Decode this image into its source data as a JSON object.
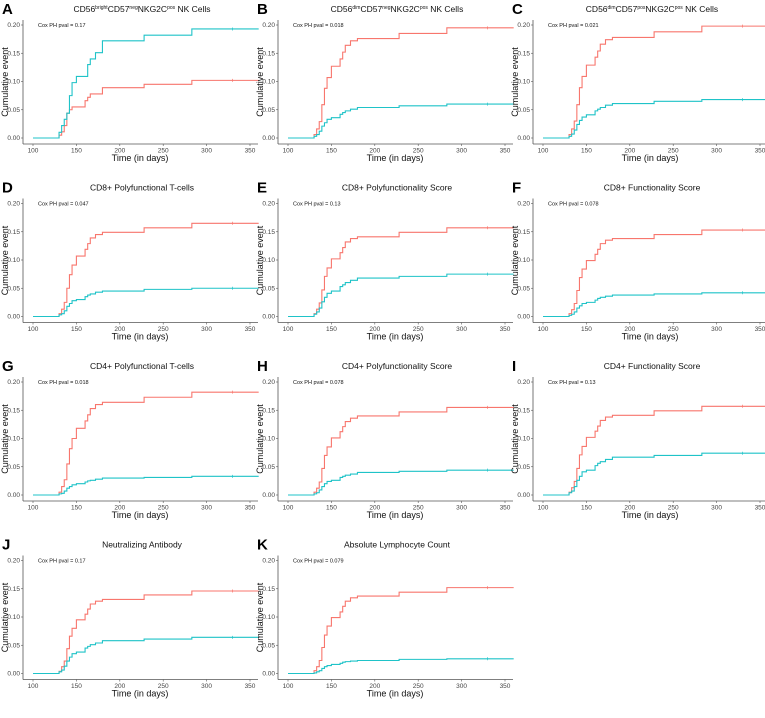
{
  "colors": {
    "red": "#F8766D",
    "cyan": "#1FC3C8",
    "axis": "#555555"
  },
  "chart_data": {
    "type": "line",
    "subtype": "step (cumulative event / Kaplan-Meier)",
    "xlabel": "Time (in days)",
    "ylabel": "Cumulative event",
    "xlim": [
      95,
      360
    ],
    "ylim": [
      0,
      0.2
    ],
    "xticks": [
      100,
      150,
      200,
      250,
      300,
      350
    ],
    "yticks": [
      "0.00",
      "0.05",
      "0.10",
      "0.15",
      "0.20"
    ],
    "step_times": [
      100,
      130,
      133,
      136,
      139,
      142,
      145,
      150,
      160,
      163,
      166,
      172,
      180,
      228,
      283
    ],
    "censor_time": 330,
    "end_time": 360,
    "panels": [
      {
        "letter": "A",
        "title_parts": [
          "CD56",
          "bright",
          "CD57",
          "neg",
          "NKG2C",
          "pos",
          " NK Cells"
        ],
        "pval": "Cox PH pval = 0.17",
        "red": [
          0,
          0.005,
          0.011,
          0.022,
          0.044,
          0.05,
          0.055,
          0.055,
          0.066,
          0.072,
          0.078,
          0.078,
          0.089,
          0.095,
          0.102
        ],
        "cyan": [
          0,
          0.01,
          0.022,
          0.033,
          0.044,
          0.075,
          0.098,
          0.109,
          0.109,
          0.13,
          0.14,
          0.151,
          0.172,
          0.182,
          0.193
        ]
      },
      {
        "letter": "B",
        "title_parts": [
          "CD56",
          "dim",
          "CD57",
          "neg",
          "NKG2C",
          "pos",
          " NK Cells"
        ],
        "pval": "Cox PH pval = 0.018",
        "red": [
          0,
          0.006,
          0.016,
          0.029,
          0.059,
          0.088,
          0.107,
          0.127,
          0.14,
          0.152,
          0.164,
          0.172,
          0.176,
          0.185,
          0.195
        ],
        "cyan": [
          0,
          0.003,
          0.006,
          0.012,
          0.021,
          0.027,
          0.033,
          0.036,
          0.042,
          0.045,
          0.048,
          0.051,
          0.054,
          0.057,
          0.06
        ]
      },
      {
        "letter": "C",
        "title_parts": [
          "CD56",
          "dim",
          "CD57",
          "pos",
          "NKG2C",
          "pos",
          " NK Cells"
        ],
        "pval": "Cox PH pval = 0.021",
        "red": [
          0,
          0.006,
          0.016,
          0.03,
          0.059,
          0.089,
          0.109,
          0.129,
          0.143,
          0.154,
          0.166,
          0.174,
          0.178,
          0.188,
          0.198
        ],
        "cyan": [
          0,
          0.003,
          0.007,
          0.014,
          0.024,
          0.031,
          0.037,
          0.041,
          0.048,
          0.051,
          0.054,
          0.058,
          0.061,
          0.065,
          0.068
        ]
      },
      {
        "letter": "D",
        "title_parts": [
          "CD8+ Polyfunctional T-cells"
        ],
        "pval": "Cox PH pval = 0.047",
        "red": [
          0,
          0.005,
          0.013,
          0.025,
          0.05,
          0.074,
          0.091,
          0.107,
          0.119,
          0.129,
          0.139,
          0.145,
          0.149,
          0.157,
          0.165
        ],
        "cyan": [
          0,
          0.003,
          0.005,
          0.01,
          0.018,
          0.023,
          0.028,
          0.03,
          0.035,
          0.038,
          0.04,
          0.043,
          0.045,
          0.048,
          0.05
        ]
      },
      {
        "letter": "E",
        "title_parts": [
          "CD8+ Polyfunctionality Score"
        ],
        "pval": "Cox PH pval = 0.13",
        "red": [
          0,
          0.005,
          0.013,
          0.024,
          0.047,
          0.071,
          0.086,
          0.102,
          0.113,
          0.122,
          0.132,
          0.138,
          0.141,
          0.149,
          0.157
        ],
        "cyan": [
          0,
          0.004,
          0.008,
          0.015,
          0.026,
          0.034,
          0.041,
          0.045,
          0.053,
          0.056,
          0.06,
          0.064,
          0.068,
          0.071,
          0.075
        ]
      },
      {
        "letter": "F",
        "title_parts": [
          "CD8+ Functionality Score"
        ],
        "pval": "Cox PH pval = 0.078",
        "red": [
          0,
          0.005,
          0.012,
          0.023,
          0.046,
          0.069,
          0.084,
          0.099,
          0.11,
          0.119,
          0.129,
          0.135,
          0.138,
          0.145,
          0.153
        ],
        "cyan": [
          0,
          0.002,
          0.004,
          0.008,
          0.015,
          0.019,
          0.023,
          0.025,
          0.029,
          0.032,
          0.034,
          0.036,
          0.038,
          0.04,
          0.042
        ]
      },
      {
        "letter": "G",
        "title_parts": [
          "CD4+ Polyfunctional T-cells"
        ],
        "pval": "Cox PH pval = 0.018",
        "red": [
          0,
          0.005,
          0.015,
          0.027,
          0.055,
          0.082,
          0.1,
          0.118,
          0.131,
          0.142,
          0.153,
          0.16,
          0.164,
          0.173,
          0.182
        ],
        "cyan": [
          0,
          0.002,
          0.003,
          0.007,
          0.012,
          0.015,
          0.018,
          0.02,
          0.023,
          0.025,
          0.026,
          0.028,
          0.03,
          0.031,
          0.033
        ]
      },
      {
        "letter": "H",
        "title_parts": [
          "CD4+ Polyfunctionality Score"
        ],
        "pval": "Cox PH pval = 0.078",
        "red": [
          0,
          0.005,
          0.012,
          0.023,
          0.047,
          0.07,
          0.085,
          0.101,
          0.112,
          0.121,
          0.13,
          0.136,
          0.14,
          0.147,
          0.155
        ],
        "cyan": [
          0,
          0.002,
          0.004,
          0.009,
          0.015,
          0.02,
          0.024,
          0.026,
          0.031,
          0.033,
          0.035,
          0.037,
          0.04,
          0.042,
          0.044
        ]
      },
      {
        "letter": "I",
        "title_parts": [
          "CD4+ Functionality Score"
        ],
        "pval": "Cox PH pval = 0.13",
        "red": [
          0,
          0.005,
          0.013,
          0.024,
          0.047,
          0.071,
          0.086,
          0.102,
          0.113,
          0.122,
          0.132,
          0.138,
          0.141,
          0.149,
          0.157
        ],
        "cyan": [
          0,
          0.004,
          0.007,
          0.015,
          0.026,
          0.033,
          0.041,
          0.044,
          0.052,
          0.056,
          0.059,
          0.063,
          0.067,
          0.07,
          0.074
        ]
      },
      {
        "letter": "J",
        "title_parts": [
          "Neutralizing Antibody"
        ],
        "pval": "Cox PH pval = 0.17",
        "red": [
          0,
          0.004,
          0.012,
          0.022,
          0.044,
          0.066,
          0.08,
          0.095,
          0.105,
          0.114,
          0.123,
          0.128,
          0.131,
          0.139,
          0.146
        ],
        "cyan": [
          0,
          0.003,
          0.006,
          0.013,
          0.022,
          0.029,
          0.035,
          0.038,
          0.045,
          0.048,
          0.051,
          0.054,
          0.058,
          0.061,
          0.064
        ]
      },
      {
        "letter": "K",
        "title_parts": [
          "Absolute Lymphocyte Count"
        ],
        "pval": "Cox PH pval = 0.079",
        "red": [
          0,
          0.005,
          0.012,
          0.023,
          0.046,
          0.068,
          0.084,
          0.099,
          0.109,
          0.119,
          0.128,
          0.134,
          0.137,
          0.144,
          0.152
        ],
        "cyan": [
          0,
          0.001,
          0.003,
          0.005,
          0.009,
          0.012,
          0.014,
          0.016,
          0.018,
          0.02,
          0.021,
          0.022,
          0.023,
          0.025,
          0.026
        ]
      }
    ]
  }
}
